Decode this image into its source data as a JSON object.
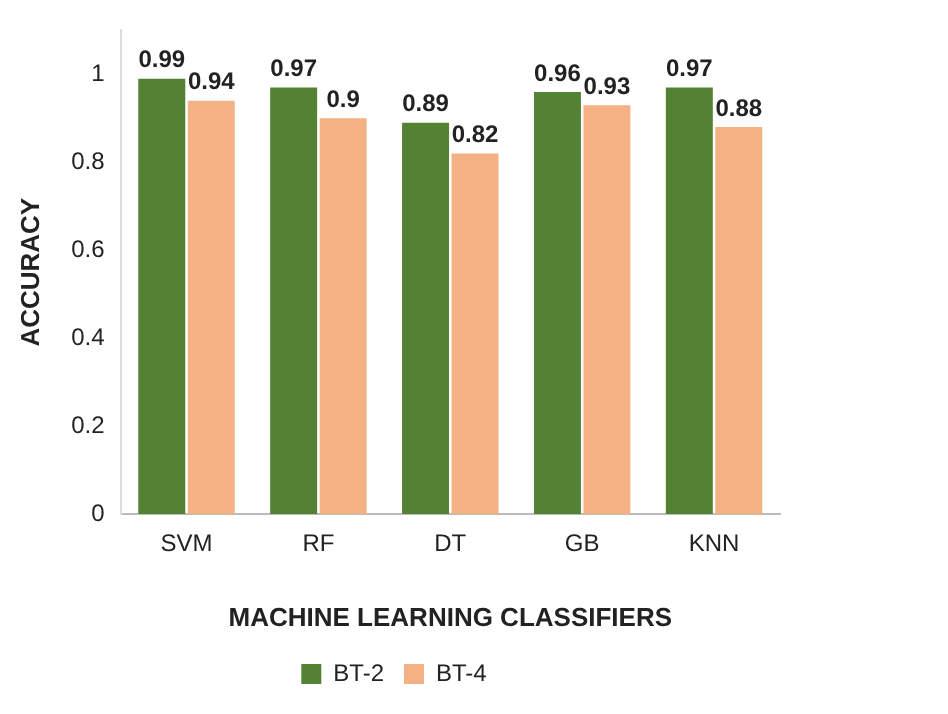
{
  "chart_data": {
    "type": "bar",
    "xlabel": "MACHINE LEARNING CLASSIFIERS",
    "ylabel": "ACCURACY",
    "categories": [
      "SVM",
      "RF",
      "DT",
      "GB",
      "KNN"
    ],
    "series": [
      {
        "name": "BT-2",
        "color": "#548235",
        "values": [
          0.99,
          0.97,
          0.89,
          0.96,
          0.97
        ]
      },
      {
        "name": "BT-4",
        "color": "#f4b183",
        "values": [
          0.94,
          0.9,
          0.82,
          0.93,
          0.88
        ]
      }
    ],
    "ylim": [
      0,
      1.1
    ],
    "yticks": [
      0,
      0.2,
      0.4,
      0.6,
      0.8,
      1
    ],
    "grid": false,
    "legend": "bottom",
    "data_labels": true
  }
}
